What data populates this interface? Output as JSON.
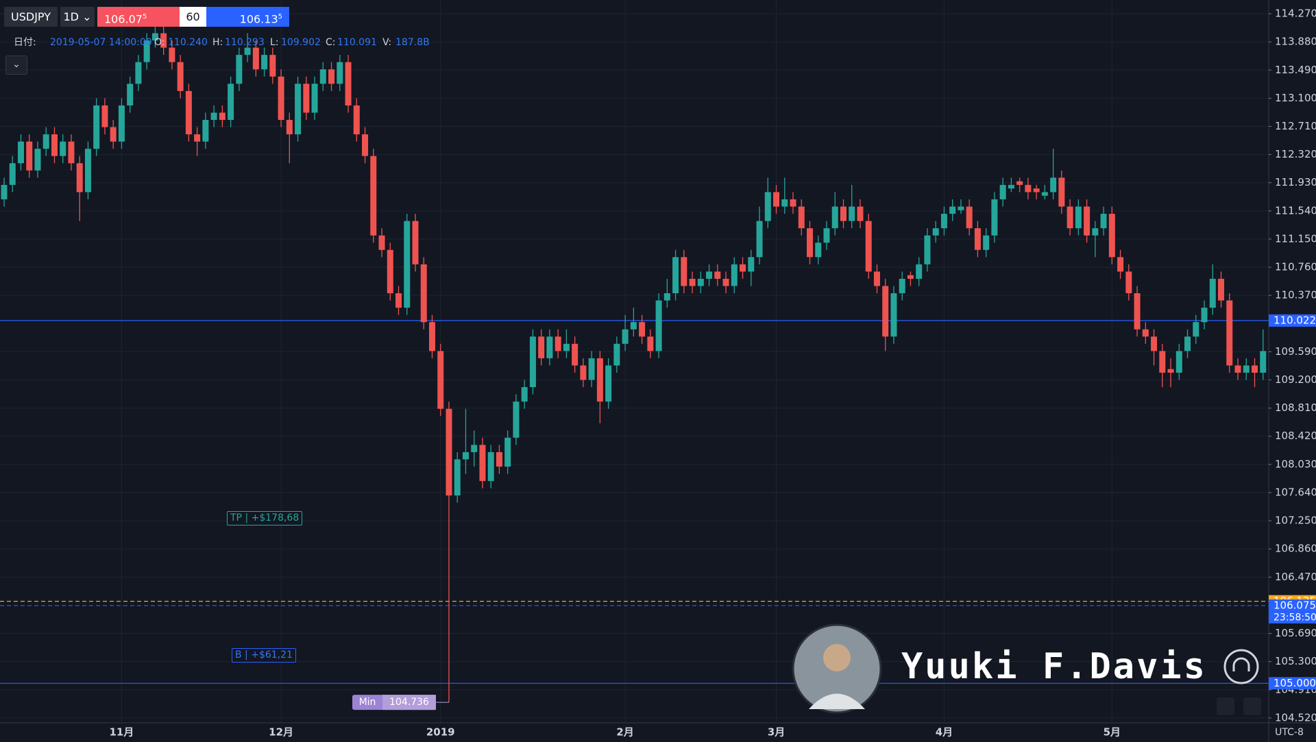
{
  "toolbar": {
    "symbol": "USDJPY",
    "interval": "1D",
    "sell_price": "106.07",
    "sell_sup": "5",
    "spread": "60",
    "buy_price": "106.13",
    "buy_sup": "5"
  },
  "ohlc": {
    "date_label": "日付:",
    "date": "2019-05-07 14:00:00",
    "o_label": "O:",
    "o": "110.240",
    "h_label": "H:",
    "h": "110.293",
    "l_label": "L:",
    "l": "109.902",
    "c_label": "C:",
    "c": "110.091",
    "v_label": "V:",
    "v": "187.8B"
  },
  "positions": {
    "tp_label": "TP",
    "tp_value": "+$178,68",
    "buy_label": "B",
    "buy_value": "+$61,21"
  },
  "min_label": "Min",
  "watermark": "Yuuki F.Davis",
  "timezone": "UTC-8",
  "chart_data": {
    "type": "candlestick",
    "up_color": "#26a69a",
    "down_color": "#ef5350",
    "grid": true,
    "ylim": [
      104.5,
      114.46
    ],
    "yticks": [
      {
        "value": 114.27,
        "label": "114.270"
      },
      {
        "value": 113.88,
        "label": "113.880"
      },
      {
        "value": 113.49,
        "label": "113.490"
      },
      {
        "value": 113.1,
        "label": "113.100"
      },
      {
        "value": 112.71,
        "label": "112.710"
      },
      {
        "value": 112.32,
        "label": "112.320"
      },
      {
        "value": 111.93,
        "label": "111.930"
      },
      {
        "value": 111.54,
        "label": "111.540"
      },
      {
        "value": 111.15,
        "label": "111.150"
      },
      {
        "value": 110.76,
        "label": "110.760"
      },
      {
        "value": 110.37,
        "label": "110.370"
      },
      {
        "value": 109.59,
        "label": "109.590"
      },
      {
        "value": 109.2,
        "label": "109.200"
      },
      {
        "value": 108.81,
        "label": "108.810"
      },
      {
        "value": 108.42,
        "label": "108.420"
      },
      {
        "value": 108.03,
        "label": "108.030"
      },
      {
        "value": 107.64,
        "label": "107.640"
      },
      {
        "value": 107.25,
        "label": "107.250"
      },
      {
        "value": 106.86,
        "label": "106.860"
      },
      {
        "value": 106.47,
        "label": "106.470"
      },
      {
        "value": 105.69,
        "label": "105.690"
      },
      {
        "value": 105.3,
        "label": "105.300"
      },
      {
        "value": 104.91,
        "label": "104.910"
      },
      {
        "value": 104.52,
        "label": "104.520"
      }
    ],
    "price_lines": [
      {
        "value": 110.022,
        "color": "#2962ff"
      },
      {
        "value": 106.135,
        "color": "#f5a623",
        "dashed": true
      },
      {
        "value": 106.075,
        "color": "#2962ff",
        "dashed": true,
        "countdown": "23:58:50"
      },
      {
        "value": 105,
        "label": "105.000",
        "color": "#2962ff"
      }
    ],
    "categories": [
      null,
      null,
      null,
      null,
      null,
      null,
      null,
      null,
      null,
      null,
      null,
      null,
      null,
      null,
      "11月",
      null,
      null,
      null,
      null,
      null,
      null,
      null,
      null,
      null,
      null,
      null,
      null,
      null,
      null,
      null,
      null,
      null,
      null,
      "12月",
      null,
      null,
      null,
      null,
      null,
      null,
      null,
      null,
      null,
      null,
      null,
      null,
      null,
      null,
      null,
      null,
      null,
      null,
      "2019",
      null,
      null,
      null,
      null,
      null,
      null,
      null,
      null,
      null,
      null,
      null,
      null,
      null,
      null,
      null,
      null,
      null,
      null,
      null,
      null,
      null,
      "2月",
      null,
      null,
      null,
      null,
      null,
      null,
      null,
      null,
      null,
      null,
      null,
      null,
      null,
      null,
      null,
      null,
      null,
      "3月",
      null,
      null,
      null,
      null,
      null,
      null,
      null,
      null,
      null,
      null,
      null,
      null,
      null,
      null,
      null,
      null,
      null,
      null,
      null,
      "4月",
      null,
      null,
      null,
      null,
      null,
      null,
      null,
      null,
      null,
      null,
      null,
      null,
      null,
      null,
      null,
      null,
      null,
      null,
      null,
      "5月",
      null,
      null,
      null,
      null,
      null,
      null,
      null,
      null,
      null,
      null,
      null,
      null,
      null,
      null,
      null,
      null,
      null,
      null
    ],
    "candles": [
      [
        111.7,
        112.0,
        111.6,
        111.9
      ],
      [
        111.9,
        112.3,
        111.8,
        112.2
      ],
      [
        112.2,
        112.6,
        112.1,
        112.5
      ],
      [
        112.5,
        112.6,
        112.0,
        112.1
      ],
      [
        112.1,
        112.5,
        112.0,
        112.4
      ],
      [
        112.4,
        112.7,
        112.3,
        112.6
      ],
      [
        112.6,
        112.7,
        112.2,
        112.3
      ],
      [
        112.3,
        112.6,
        112.2,
        112.5
      ],
      [
        112.5,
        112.6,
        112.1,
        112.2
      ],
      [
        112.2,
        112.3,
        111.4,
        111.8
      ],
      [
        111.8,
        112.5,
        111.7,
        112.4
      ],
      [
        112.4,
        113.1,
        112.3,
        113.0
      ],
      [
        113.0,
        113.1,
        112.6,
        112.7
      ],
      [
        112.7,
        112.8,
        112.4,
        112.5
      ],
      [
        112.5,
        113.1,
        112.4,
        113.0
      ],
      [
        113.0,
        113.4,
        112.9,
        113.3
      ],
      [
        113.3,
        113.7,
        113.2,
        113.6
      ],
      [
        113.6,
        114.0,
        113.5,
        113.9
      ],
      [
        113.9,
        114.2,
        113.8,
        114.0
      ],
      [
        114.0,
        114.1,
        113.7,
        113.8
      ],
      [
        113.8,
        113.9,
        113.5,
        113.6
      ],
      [
        113.6,
        113.7,
        113.1,
        113.2
      ],
      [
        113.2,
        113.3,
        112.5,
        112.6
      ],
      [
        112.6,
        112.7,
        112.3,
        112.5
      ],
      [
        112.5,
        112.9,
        112.4,
        112.8
      ],
      [
        112.8,
        113.0,
        112.7,
        112.9
      ],
      [
        112.9,
        113.0,
        112.7,
        112.8
      ],
      [
        112.8,
        113.4,
        112.7,
        113.3
      ],
      [
        113.3,
        113.8,
        113.2,
        113.7
      ],
      [
        113.7,
        114.0,
        113.6,
        113.8
      ],
      [
        113.8,
        113.9,
        113.4,
        113.5
      ],
      [
        113.5,
        113.8,
        113.4,
        113.7
      ],
      [
        113.7,
        113.8,
        113.3,
        113.4
      ],
      [
        113.4,
        113.5,
        112.7,
        112.8
      ],
      [
        112.8,
        112.9,
        112.2,
        112.6
      ],
      [
        112.6,
        113.4,
        112.5,
        113.3
      ],
      [
        113.3,
        113.4,
        112.8,
        112.9
      ],
      [
        112.9,
        113.4,
        112.8,
        113.3
      ],
      [
        113.3,
        113.6,
        113.2,
        113.5
      ],
      [
        113.5,
        113.6,
        113.2,
        113.3
      ],
      [
        113.3,
        113.7,
        113.2,
        113.6
      ],
      [
        113.6,
        113.7,
        112.9,
        113.0
      ],
      [
        113.0,
        113.1,
        112.5,
        112.6
      ],
      [
        112.6,
        112.7,
        112.2,
        112.3
      ],
      [
        112.3,
        112.4,
        111.1,
        111.2
      ],
      [
        111.2,
        111.3,
        110.9,
        111.0
      ],
      [
        111.0,
        111.1,
        110.3,
        110.4
      ],
      [
        110.4,
        110.5,
        110.1,
        110.2
      ],
      [
        110.2,
        111.5,
        110.1,
        111.4
      ],
      [
        111.4,
        111.5,
        110.7,
        110.8
      ],
      [
        110.8,
        110.9,
        109.9,
        110.0
      ],
      [
        110.0,
        110.1,
        109.5,
        109.6
      ],
      [
        109.6,
        109.7,
        108.7,
        108.8
      ],
      [
        108.8,
        108.9,
        104.736,
        107.6
      ],
      [
        107.6,
        108.2,
        107.5,
        108.1
      ],
      [
        108.1,
        108.8,
        107.9,
        108.2
      ],
      [
        108.2,
        108.5,
        108.0,
        108.3
      ],
      [
        108.3,
        108.4,
        107.7,
        107.8
      ],
      [
        107.8,
        108.3,
        107.7,
        108.2
      ],
      [
        108.2,
        108.3,
        107.9,
        108.0
      ],
      [
        108.0,
        108.5,
        107.9,
        108.4
      ],
      [
        108.4,
        109.0,
        108.3,
        108.9
      ],
      [
        108.9,
        109.2,
        108.8,
        109.1
      ],
      [
        109.1,
        109.9,
        109.0,
        109.8
      ],
      [
        109.8,
        109.9,
        109.4,
        109.5
      ],
      [
        109.5,
        109.9,
        109.4,
        109.8
      ],
      [
        109.8,
        109.9,
        109.5,
        109.6
      ],
      [
        109.6,
        109.9,
        109.5,
        109.7
      ],
      [
        109.7,
        109.8,
        109.3,
        109.4
      ],
      [
        109.4,
        109.5,
        109.1,
        109.2
      ],
      [
        109.2,
        109.6,
        109.1,
        109.5
      ],
      [
        109.5,
        109.6,
        108.6,
        108.9
      ],
      [
        108.9,
        109.5,
        108.8,
        109.4
      ],
      [
        109.4,
        109.8,
        109.3,
        109.7
      ],
      [
        109.7,
        110.1,
        109.6,
        109.9
      ],
      [
        109.9,
        110.2,
        109.8,
        110.0
      ],
      [
        110.0,
        110.1,
        109.7,
        109.8
      ],
      [
        109.8,
        109.9,
        109.5,
        109.6
      ],
      [
        109.6,
        110.4,
        109.5,
        110.3
      ],
      [
        110.3,
        110.6,
        110.2,
        110.4
      ],
      [
        110.4,
        111.0,
        110.3,
        110.9
      ],
      [
        110.9,
        111.0,
        110.4,
        110.5
      ],
      [
        110.6,
        110.7,
        110.4,
        110.5
      ],
      [
        110.5,
        110.7,
        110.4,
        110.6
      ],
      [
        110.6,
        110.8,
        110.5,
        110.7
      ],
      [
        110.7,
        110.8,
        110.5,
        110.6
      ],
      [
        110.6,
        110.7,
        110.4,
        110.5
      ],
      [
        110.5,
        110.9,
        110.4,
        110.8
      ],
      [
        110.8,
        110.9,
        110.6,
        110.7
      ],
      [
        110.7,
        111.0,
        110.5,
        110.9
      ],
      [
        110.9,
        111.6,
        110.8,
        111.4
      ],
      [
        111.4,
        112.0,
        111.3,
        111.8
      ],
      [
        111.8,
        111.9,
        111.5,
        111.6
      ],
      [
        111.6,
        112.0,
        111.5,
        111.7
      ],
      [
        111.7,
        111.8,
        111.5,
        111.6
      ],
      [
        111.6,
        111.7,
        111.2,
        111.3
      ],
      [
        111.3,
        111.4,
        110.8,
        110.9
      ],
      [
        110.9,
        111.2,
        110.8,
        111.1
      ],
      [
        111.1,
        111.4,
        111.0,
        111.3
      ],
      [
        111.3,
        111.8,
        111.2,
        111.6
      ],
      [
        111.6,
        111.7,
        111.3,
        111.4
      ],
      [
        111.4,
        111.9,
        111.3,
        111.6
      ],
      [
        111.6,
        111.7,
        111.3,
        111.4
      ],
      [
        111.4,
        111.5,
        110.6,
        110.7
      ],
      [
        110.7,
        110.8,
        110.4,
        110.5
      ],
      [
        110.5,
        110.6,
        109.6,
        109.8
      ],
      [
        109.8,
        110.5,
        109.7,
        110.4
      ],
      [
        110.4,
        110.7,
        110.3,
        110.6
      ],
      [
        110.65,
        110.7,
        110.5,
        110.6
      ],
      [
        110.6,
        110.9,
        110.5,
        110.8
      ],
      [
        110.8,
        111.3,
        110.7,
        111.2
      ],
      [
        111.2,
        111.4,
        111.1,
        111.3
      ],
      [
        111.3,
        111.6,
        111.2,
        111.5
      ],
      [
        111.5,
        111.7,
        111.4,
        111.6
      ],
      [
        111.55,
        111.7,
        111.5,
        111.6
      ],
      [
        111.6,
        111.7,
        111.2,
        111.3
      ],
      [
        111.3,
        111.4,
        110.9,
        111.0
      ],
      [
        111.0,
        111.3,
        110.9,
        111.2
      ],
      [
        111.2,
        111.8,
        111.1,
        111.7
      ],
      [
        111.7,
        112.0,
        111.6,
        111.9
      ],
      [
        111.85,
        112.0,
        111.8,
        111.9
      ],
      [
        111.95,
        112.0,
        111.8,
        111.9
      ],
      [
        111.9,
        112.0,
        111.7,
        111.8
      ],
      [
        111.85,
        111.9,
        111.7,
        111.8
      ],
      [
        111.75,
        111.9,
        111.7,
        111.8
      ],
      [
        111.8,
        112.4,
        111.7,
        112.0
      ],
      [
        112.0,
        112.1,
        111.5,
        111.6
      ],
      [
        111.6,
        111.7,
        111.2,
        111.3
      ],
      [
        111.3,
        111.7,
        111.2,
        111.6
      ],
      [
        111.6,
        111.7,
        111.1,
        111.2
      ],
      [
        111.2,
        111.4,
        110.9,
        111.3
      ],
      [
        111.3,
        111.6,
        111.2,
        111.5
      ],
      [
        111.5,
        111.6,
        110.8,
        110.9
      ],
      [
        110.9,
        111.0,
        110.6,
        110.7
      ],
      [
        110.7,
        110.8,
        110.3,
        110.4
      ],
      [
        110.4,
        110.5,
        109.8,
        109.9
      ],
      [
        109.9,
        110.0,
        109.7,
        109.8
      ],
      [
        109.8,
        109.9,
        109.4,
        109.6
      ],
      [
        109.6,
        109.7,
        109.1,
        109.3
      ],
      [
        109.35,
        109.5,
        109.1,
        109.3
      ],
      [
        109.3,
        109.7,
        109.2,
        109.6
      ],
      [
        109.6,
        109.9,
        109.5,
        109.8
      ],
      [
        109.8,
        110.1,
        109.7,
        110.0
      ],
      [
        110.0,
        110.3,
        109.9,
        110.2
      ],
      [
        110.2,
        110.8,
        110.1,
        110.6
      ],
      [
        110.6,
        110.7,
        110.2,
        110.3
      ],
      [
        110.3,
        110.4,
        109.3,
        109.4
      ],
      [
        109.4,
        109.5,
        109.2,
        109.3
      ],
      [
        109.3,
        109.5,
        109.2,
        109.4
      ],
      [
        109.4,
        109.5,
        109.1,
        109.3
      ],
      [
        109.3,
        109.9,
        109.2,
        109.6
      ]
    ]
  }
}
